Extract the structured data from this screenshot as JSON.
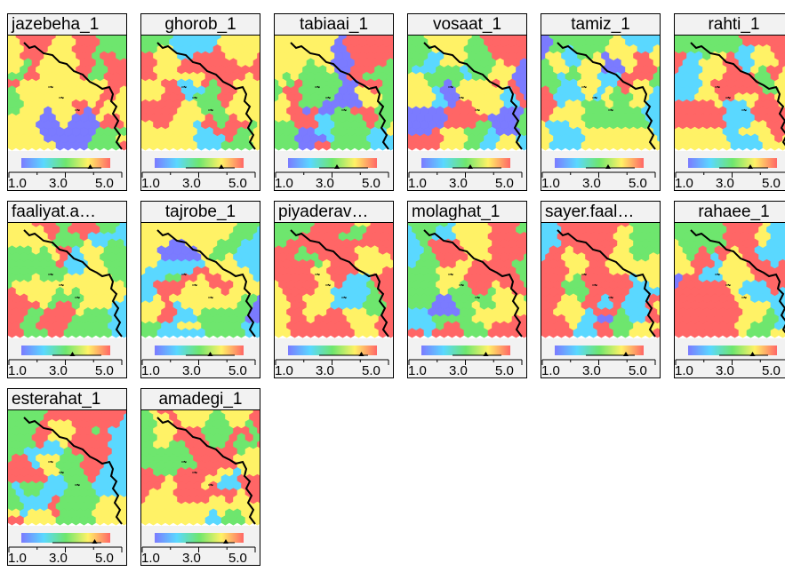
{
  "scale": {
    "min": 1.0,
    "max": 5.0,
    "tick_labels": [
      "1.0",
      "3.0",
      "5.0"
    ],
    "colors": [
      "#7b7bff",
      "#5ad8ff",
      "#6ee66e",
      "#fff266",
      "#ff6666"
    ]
  },
  "panels": [
    {
      "title": "jazebeha_1",
      "mean": 4.1,
      "scheme": 0
    },
    {
      "title": "ghorob_1",
      "mean": 4.0,
      "scheme": 1
    },
    {
      "title": "tabiaai_1",
      "mean": 3.2,
      "scheme": 2
    },
    {
      "title": "vosaat_1",
      "mean": 3.2,
      "scheme": 3
    },
    {
      "title": "tamiz_1",
      "mean": 3.4,
      "scheme": 4
    },
    {
      "title": "rahti_1",
      "mean": 3.8,
      "scheme": 5
    },
    {
      "title": "faaliyat.a…",
      "mean": 3.3,
      "scheme": 6
    },
    {
      "title": "tajrobe_1",
      "mean": 3.5,
      "scheme": 7
    },
    {
      "title": "piyaderav…",
      "mean": 4.3,
      "scheme": 8
    },
    {
      "title": "molaghat_1",
      "mean": 3.9,
      "scheme": 9
    },
    {
      "title": "sayer.faal…",
      "mean": 4.2,
      "scheme": 10
    },
    {
      "title": "rahaee_1",
      "mean": 3.9,
      "scheme": 11
    },
    {
      "title": "esterahat_1",
      "mean": 4.3,
      "scheme": 12
    },
    {
      "title": "amadegi_1",
      "mean": 4.2,
      "scheme": 13
    }
  ]
}
